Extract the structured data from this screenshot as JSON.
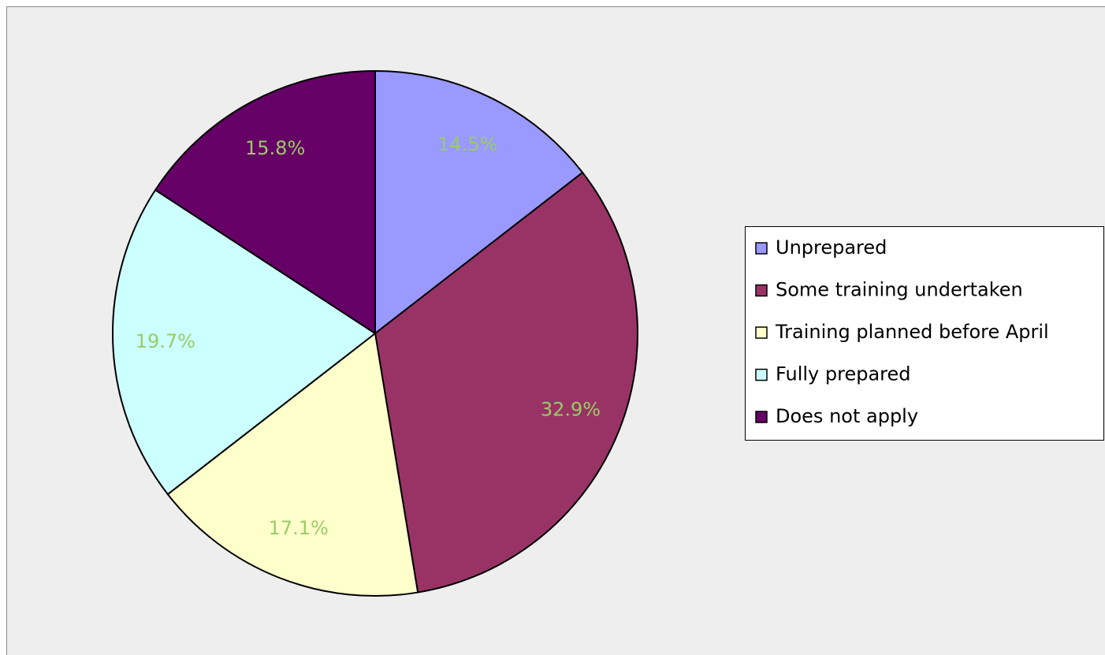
{
  "chart_data": {
    "type": "pie",
    "categories": [
      "Unprepared",
      "Some training undertaken",
      "Training planned before April",
      "Fully prepared",
      "Does not apply"
    ],
    "values": [
      14.5,
      32.9,
      17.1,
      19.7,
      15.8
    ],
    "value_labels": [
      "14.5%",
      "32.9%",
      "17.1%",
      "19.7%",
      "15.8%"
    ],
    "colors": [
      "#9999ff",
      "#993366",
      "#ffffcc",
      "#ccffff",
      "#660066"
    ],
    "label_color": "#99cc66",
    "legend": "right"
  }
}
